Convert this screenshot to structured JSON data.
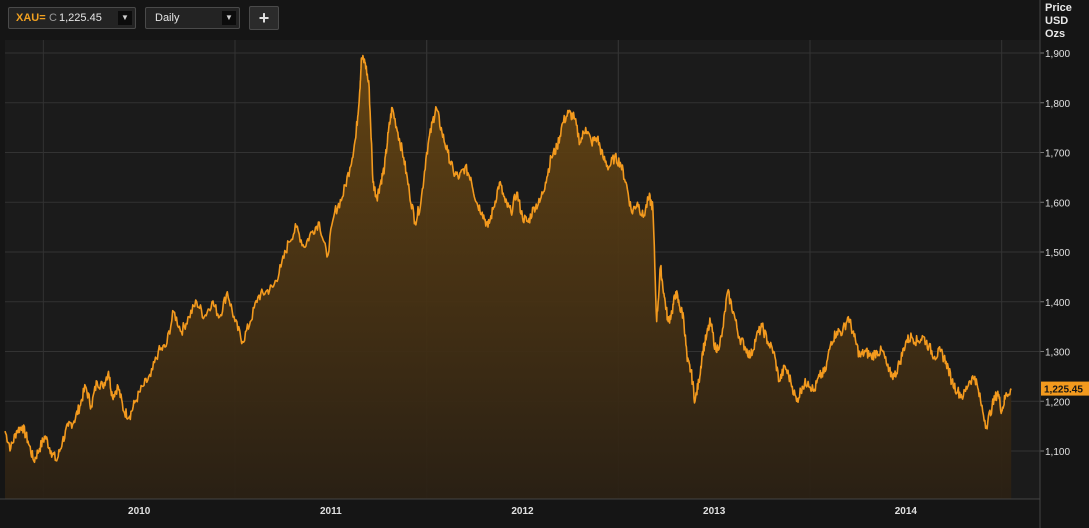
{
  "toolbar": {
    "symbol": "XAU=",
    "close_flag": "C",
    "last_value": "1,225.45",
    "interval": "Daily",
    "add_label": "+"
  },
  "chart_data": {
    "type": "area",
    "title": "",
    "xlabel": "",
    "ylabel": "Price USD Ozs",
    "ylabel_lines": [
      "Price",
      "USD",
      "Ozs"
    ],
    "ylim": [
      1050,
      1950
    ],
    "y_ticks": [
      1100,
      1200,
      1300,
      1400,
      1500,
      1600,
      1700,
      1800,
      1900
    ],
    "y_tick_labels": [
      "1,100",
      "1,200",
      "1,300",
      "1,400",
      "1,500",
      "1,600",
      "1,700",
      "1,800",
      "1,900"
    ],
    "x_ticks": [
      "2010",
      "2011",
      "2012",
      "2013",
      "2014"
    ],
    "last_price_label": "1,225.45",
    "grid": true,
    "colors": {
      "line": "#f39a1e",
      "fill": "#5a3c12",
      "background": "#1b1b1b",
      "grid": "#333333",
      "price_tag": "#f39a1e"
    },
    "series": [
      {
        "values": [
          [
            2009.3,
            1140
          ],
          [
            2009.33,
            1105
          ],
          [
            2009.36,
            1140
          ],
          [
            2009.39,
            1150
          ],
          [
            2009.42,
            1120
          ],
          [
            2009.45,
            1080
          ],
          [
            2009.48,
            1105
          ],
          [
            2009.51,
            1130
          ],
          [
            2009.54,
            1100
          ],
          [
            2009.57,
            1080
          ],
          [
            2009.6,
            1120
          ],
          [
            2009.63,
            1150
          ],
          [
            2009.66,
            1160
          ],
          [
            2009.69,
            1190
          ],
          [
            2009.72,
            1230
          ],
          [
            2009.75,
            1190
          ],
          [
            2009.78,
            1240
          ],
          [
            2009.81,
            1230
          ],
          [
            2009.84,
            1260
          ],
          [
            2009.86,
            1210
          ],
          [
            2009.89,
            1230
          ],
          [
            2009.92,
            1180
          ],
          [
            2009.95,
            1170
          ],
          [
            2009.98,
            1200
          ],
          [
            2010.02,
            1230
          ],
          [
            2010.06,
            1250
          ],
          [
            2010.1,
            1300
          ],
          [
            2010.14,
            1310
          ],
          [
            2010.18,
            1380
          ],
          [
            2010.22,
            1340
          ],
          [
            2010.26,
            1370
          ],
          [
            2010.3,
            1400
          ],
          [
            2010.34,
            1370
          ],
          [
            2010.38,
            1400
          ],
          [
            2010.42,
            1370
          ],
          [
            2010.46,
            1420
          ],
          [
            2010.5,
            1360
          ],
          [
            2010.54,
            1320
          ],
          [
            2010.58,
            1360
          ],
          [
            2010.62,
            1410
          ],
          [
            2010.66,
            1420
          ],
          [
            2010.7,
            1430
          ],
          [
            2010.74,
            1470
          ],
          [
            2010.78,
            1520
          ],
          [
            2010.82,
            1550
          ],
          [
            2010.86,
            1510
          ],
          [
            2010.9,
            1540
          ],
          [
            2010.94,
            1560
          ],
          [
            2010.98,
            1490
          ],
          [
            2011.02,
            1580
          ],
          [
            2011.06,
            1610
          ],
          [
            2011.1,
            1670
          ],
          [
            2011.13,
            1730
          ],
          [
            2011.15,
            1820
          ],
          [
            2011.16,
            1890
          ],
          [
            2011.18,
            1880
          ],
          [
            2011.2,
            1830
          ],
          [
            2011.22,
            1640
          ],
          [
            2011.24,
            1610
          ],
          [
            2011.26,
            1640
          ],
          [
            2011.28,
            1670
          ],
          [
            2011.3,
            1740
          ],
          [
            2011.32,
            1790
          ],
          [
            2011.35,
            1740
          ],
          [
            2011.38,
            1690
          ],
          [
            2011.41,
            1620
          ],
          [
            2011.44,
            1560
          ],
          [
            2011.47,
            1600
          ],
          [
            2011.5,
            1700
          ],
          [
            2011.53,
            1760
          ],
          [
            2011.55,
            1790
          ],
          [
            2011.58,
            1740
          ],
          [
            2011.61,
            1700
          ],
          [
            2011.64,
            1660
          ],
          [
            2011.67,
            1650
          ],
          [
            2011.7,
            1670
          ],
          [
            2011.73,
            1650
          ],
          [
            2011.76,
            1600
          ],
          [
            2011.79,
            1580
          ],
          [
            2011.82,
            1550
          ],
          [
            2011.85,
            1590
          ],
          [
            2011.88,
            1640
          ],
          [
            2011.91,
            1600
          ],
          [
            2011.94,
            1580
          ],
          [
            2011.97,
            1620
          ],
          [
            2012.0,
            1570
          ],
          [
            2012.03,
            1560
          ],
          [
            2012.06,
            1590
          ],
          [
            2012.09,
            1600
          ],
          [
            2012.12,
            1640
          ],
          [
            2012.15,
            1690
          ],
          [
            2012.18,
            1710
          ],
          [
            2012.21,
            1760
          ],
          [
            2012.24,
            1780
          ],
          [
            2012.27,
            1770
          ],
          [
            2012.3,
            1720
          ],
          [
            2012.33,
            1750
          ],
          [
            2012.36,
            1720
          ],
          [
            2012.39,
            1730
          ],
          [
            2012.42,
            1690
          ],
          [
            2012.45,
            1670
          ],
          [
            2012.48,
            1690
          ],
          [
            2012.51,
            1680
          ],
          [
            2012.54,
            1640
          ],
          [
            2012.57,
            1580
          ],
          [
            2012.6,
            1600
          ],
          [
            2012.63,
            1570
          ],
          [
            2012.66,
            1610
          ],
          [
            2012.68,
            1590
          ],
          [
            2012.7,
            1360
          ],
          [
            2012.72,
            1470
          ],
          [
            2012.74,
            1410
          ],
          [
            2012.76,
            1360
          ],
          [
            2012.78,
            1380
          ],
          [
            2012.8,
            1420
          ],
          [
            2012.82,
            1390
          ],
          [
            2012.84,
            1370
          ],
          [
            2012.86,
            1280
          ],
          [
            2012.88,
            1260
          ],
          [
            2012.9,
            1200
          ],
          [
            2012.92,
            1240
          ],
          [
            2012.94,
            1300
          ],
          [
            2012.96,
            1330
          ],
          [
            2012.98,
            1360
          ],
          [
            2013.01,
            1300
          ],
          [
            2013.04,
            1330
          ],
          [
            2013.07,
            1420
          ],
          [
            2013.1,
            1380
          ],
          [
            2013.13,
            1330
          ],
          [
            2013.16,
            1310
          ],
          [
            2013.19,
            1290
          ],
          [
            2013.22,
            1330
          ],
          [
            2013.25,
            1350
          ],
          [
            2013.28,
            1320
          ],
          [
            2013.31,
            1300
          ],
          [
            2013.34,
            1240
          ],
          [
            2013.37,
            1270
          ],
          [
            2013.4,
            1240
          ],
          [
            2013.43,
            1200
          ],
          [
            2013.46,
            1230
          ],
          [
            2013.49,
            1240
          ],
          [
            2013.52,
            1220
          ],
          [
            2013.55,
            1250
          ],
          [
            2013.58,
            1260
          ],
          [
            2013.61,
            1320
          ],
          [
            2013.64,
            1340
          ],
          [
            2013.67,
            1340
          ],
          [
            2013.7,
            1370
          ],
          [
            2013.73,
            1330
          ],
          [
            2013.76,
            1290
          ],
          [
            2013.79,
            1300
          ],
          [
            2013.82,
            1290
          ],
          [
            2013.85,
            1300
          ],
          [
            2013.88,
            1300
          ],
          [
            2013.91,
            1260
          ],
          [
            2013.94,
            1250
          ],
          [
            2013.97,
            1280
          ],
          [
            2014.0,
            1320
          ],
          [
            2014.03,
            1330
          ],
          [
            2014.06,
            1320
          ],
          [
            2014.09,
            1330
          ],
          [
            2014.12,
            1310
          ],
          [
            2014.15,
            1290
          ],
          [
            2014.18,
            1300
          ],
          [
            2014.21,
            1280
          ],
          [
            2014.24,
            1240
          ],
          [
            2014.27,
            1220
          ],
          [
            2014.3,
            1210
          ],
          [
            2014.33,
            1240
          ],
          [
            2014.36,
            1250
          ],
          [
            2014.39,
            1200
          ],
          [
            2014.42,
            1150
          ],
          [
            2014.45,
            1190
          ],
          [
            2014.48,
            1220
          ],
          [
            2014.5,
            1180
          ],
          [
            2014.52,
            1210
          ],
          [
            2014.55,
            1225.45
          ]
        ]
      }
    ]
  }
}
